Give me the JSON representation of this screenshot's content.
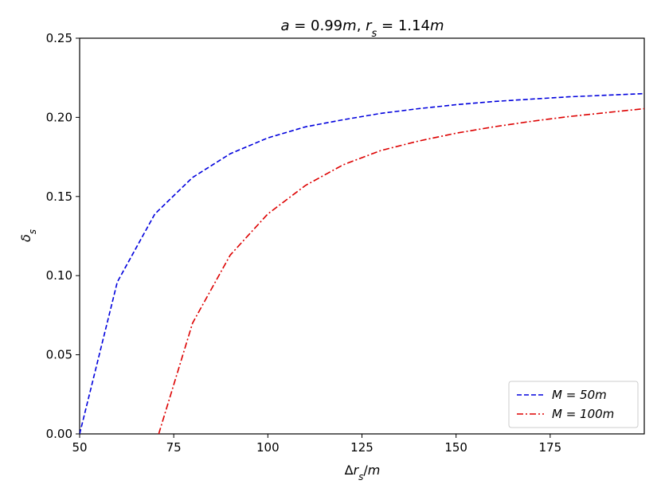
{
  "chart_data": {
    "type": "line",
    "title": "a = 0.99m, r_s = 1.14m",
    "xlabel": "Δr_s/m",
    "ylabel": "δ_s",
    "xlim": [
      50,
      200
    ],
    "ylim": [
      0.0,
      0.25
    ],
    "xticks": [
      50,
      75,
      100,
      125,
      150,
      175
    ],
    "xtick_labels": [
      "50",
      "75",
      "100",
      "125",
      "150",
      "175"
    ],
    "yticks": [
      0.0,
      0.05,
      0.1,
      0.15,
      0.2,
      0.25
    ],
    "ytick_labels": [
      "0.00",
      "0.05",
      "0.10",
      "0.15",
      "0.20",
      "0.25"
    ],
    "grid": false,
    "legend_position": "lower-right",
    "series": [
      {
        "name": "M = 50m",
        "color": "#0000dd",
        "dash": "dashed",
        "x": [
          50,
          60,
          70,
          80,
          90,
          100,
          110,
          120,
          130,
          140,
          150,
          160,
          170,
          180,
          190,
          200
        ],
        "y": [
          0.0,
          0.096,
          0.139,
          0.162,
          0.177,
          0.187,
          0.194,
          0.1985,
          0.2025,
          0.2055,
          0.208,
          0.21,
          0.2115,
          0.213,
          0.214,
          0.215
        ]
      },
      {
        "name": "M = 100m",
        "color": "#dd0000",
        "dash": "dashdot",
        "x": [
          71,
          80,
          90,
          100,
          110,
          120,
          130,
          140,
          150,
          160,
          170,
          180,
          190,
          200
        ],
        "y": [
          0.0,
          0.07,
          0.113,
          0.139,
          0.157,
          0.17,
          0.179,
          0.185,
          0.19,
          0.194,
          0.1975,
          0.2005,
          0.203,
          0.2055
        ]
      }
    ]
  }
}
